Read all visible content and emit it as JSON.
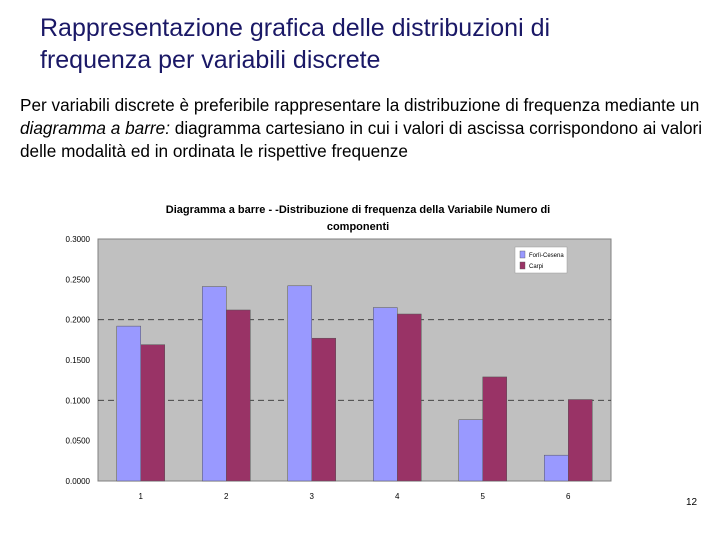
{
  "slide": {
    "title_line1": "Rappresentazione grafica delle distribuzioni di",
    "title_line2": "frequenza per variabili discrete",
    "body_text_1": "Per variabili discrete è preferibile rappresentare la distribuzione di frequenza mediante un ",
    "body_text_italic": "diagramma a barre:",
    "body_text_2": " diagramma cartesiano in cui i valori di ascissa corrispondono ai valori delle modalità ed in ordinata le rispettive frequenze",
    "page_number": "12"
  },
  "chart_data": {
    "type": "bar",
    "title_line1": "Diagramma a barre - -Distribuzione di frequenza della Variabile Numero di",
    "title_line2": "componenti",
    "categories": [
      "1",
      "2",
      "3",
      "4",
      "5",
      "6"
    ],
    "series": [
      {
        "name": "Forlì-Cesena",
        "color": "#9999ff",
        "values": [
          0.192,
          0.241,
          0.242,
          0.215,
          0.076,
          0.032
        ]
      },
      {
        "name": "Carpi",
        "color": "#993366",
        "values": [
          0.169,
          0.212,
          0.177,
          0.207,
          0.129,
          0.101
        ]
      }
    ],
    "y_tick_labels": [
      "0.0000",
      "0.0500",
      "0.1000",
      "0.1500",
      "0.2000",
      "0.2500",
      "0.3000"
    ],
    "ylim": [
      0,
      0.3
    ],
    "grid": "dashed horizontal lines at 0.1 and 0.2",
    "plot_background": "#c0c0c0",
    "legend_position": "top-right"
  }
}
